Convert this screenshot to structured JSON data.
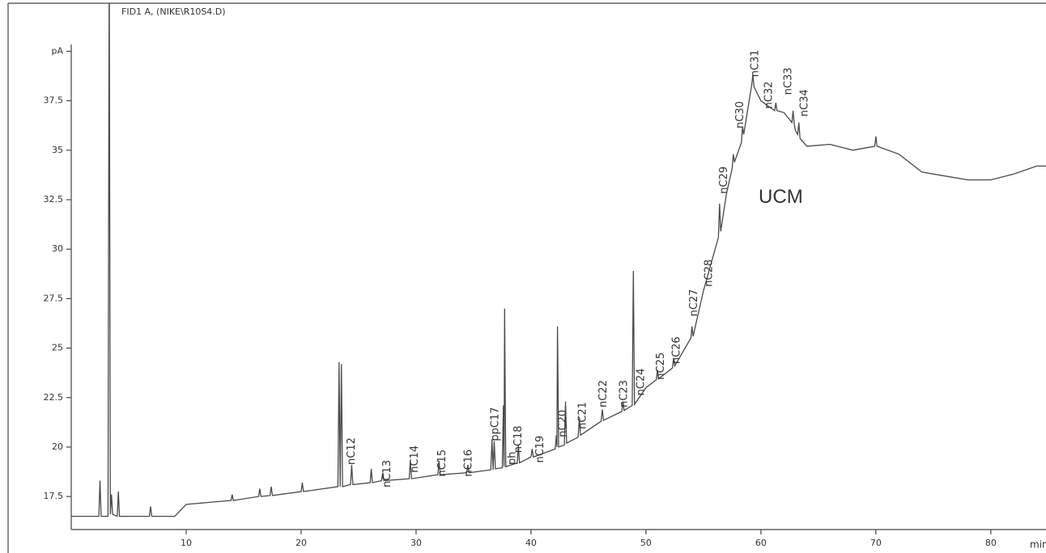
{
  "chart_data": {
    "type": "line",
    "title": "FID1 A, (NIKE\\R10S4.D)",
    "x_label": "min",
    "color": "#4a4a4a",
    "xlim": [
      0,
      84.8
    ],
    "ylim": [
      15.83,
      42.43
    ],
    "xticks": [
      10,
      20,
      30,
      40,
      50,
      60,
      70,
      80
    ],
    "yticks": [
      17.5,
      20,
      22.5,
      25,
      27.5,
      30,
      32.5,
      35,
      37.5,
      {
        "value": 40,
        "label": "pA"
      }
    ],
    "x": [
      0,
      2.4,
      2.5,
      2.6,
      3.2,
      3.3,
      3.4,
      3.5,
      3.6,
      4.0,
      4.1,
      4.2,
      6.8,
      6.9,
      7.0,
      9,
      10,
      13.9,
      14,
      14.1,
      16.3,
      16.4,
      16.5,
      17.3,
      17.4,
      17.5,
      20,
      20.1,
      20.2,
      23.2,
      23.3,
      23.4,
      23.5,
      23.6,
      24.3,
      24.4,
      24.5,
      26,
      26.1,
      26.2,
      27,
      27.1,
      27.2,
      29.4,
      29.5,
      29.6,
      31.9,
      32,
      32.1,
      34.4,
      34.5,
      34.6,
      36.5,
      36.6,
      36.7,
      36.8,
      36.9,
      37.5,
      37.6,
      37.65,
      37.7,
      37.8,
      38.8,
      38.9,
      39.0,
      40,
      40.1,
      40.2,
      42.1,
      42.2,
      42.25,
      42.3,
      42.4,
      42.9,
      43,
      43.1,
      44.1,
      44.2,
      44.3,
      46.1,
      46.2,
      46.3,
      47.9,
      48,
      48.1,
      48.8,
      48.9,
      49,
      50,
      50.9,
      51,
      51.1,
      52.3,
      52.4,
      52.5,
      53,
      53.9,
      54,
      54.1,
      55,
      56.3,
      56.4,
      56.5,
      57,
      57.5,
      57.6,
      57.7,
      58.3,
      58.4,
      58.5,
      59.2,
      59.3,
      59.4,
      60,
      61.2,
      61.3,
      61.4,
      62,
      62.7,
      62.8,
      62.9,
      63,
      63.2,
      63.3,
      63.4,
      64,
      66,
      68,
      69.9,
      70,
      70.1,
      72,
      74,
      76,
      78,
      80,
      82,
      84,
      84.8
    ],
    "values": [
      16.5,
      16.5,
      18.3,
      16.5,
      16.5,
      45,
      16.6,
      17.6,
      16.6,
      16.5,
      17.75,
      16.5,
      16.5,
      17.0,
      16.5,
      16.5,
      17.1,
      17.3,
      17.6,
      17.3,
      17.5,
      17.9,
      17.5,
      17.55,
      18.0,
      17.55,
      17.75,
      18.2,
      17.75,
      18.0,
      24.3,
      18.0,
      24.2,
      18.0,
      18.1,
      19.1,
      18.1,
      18.2,
      18.9,
      18.2,
      18.3,
      18.7,
      18.3,
      18.4,
      19.3,
      18.4,
      18.6,
      19.3,
      18.6,
      18.7,
      19.1,
      18.7,
      18.85,
      20.4,
      18.85,
      20.3,
      18.9,
      18.95,
      22.1,
      19.0,
      27.0,
      19.0,
      19.2,
      20.1,
      19.2,
      19.5,
      19.9,
      19.5,
      19.9,
      20.6,
      20.0,
      26.1,
      20.0,
      20.1,
      22.3,
      20.2,
      20.5,
      21.5,
      20.6,
      21.3,
      21.9,
      21.35,
      21.8,
      22.3,
      21.85,
      22.1,
      28.9,
      22.15,
      23.0,
      23.4,
      23.9,
      23.45,
      24.0,
      24.5,
      24.1,
      24.6,
      25.5,
      26.1,
      25.6,
      27.9,
      30.6,
      32.3,
      30.9,
      32.8,
      34.1,
      34.8,
      34.4,
      35.4,
      36.2,
      35.8,
      38.3,
      38.8,
      38.2,
      37.5,
      37.0,
      37.4,
      37.0,
      36.9,
      36.4,
      37.0,
      36.3,
      36.0,
      35.8,
      36.4,
      35.6,
      35.2,
      35.3,
      35.0,
      35.2,
      35.7,
      35.2,
      34.8,
      33.9,
      33.7,
      33.5,
      33.5,
      33.8,
      34.2,
      34.2
    ],
    "annotations": [
      {
        "label": "nC12",
        "x": 24.4,
        "y": 19.1
      },
      {
        "label": "nC13",
        "x": 27.5,
        "y": 17.96
      },
      {
        "label": "nC14",
        "x": 29.9,
        "y": 18.7
      },
      {
        "label": "nC15",
        "x": 32.3,
        "y": 18.5
      },
      {
        "label": "nC16",
        "x": 34.6,
        "y": 18.5
      },
      {
        "label": "ppC17",
        "x": 36.9,
        "y": 20.3
      },
      {
        "label": "ph",
        "x": 38.4,
        "y": 19.1
      },
      {
        "label": "nC18",
        "x": 38.9,
        "y": 19.7
      },
      {
        "label": "nC19",
        "x": 40.8,
        "y": 19.2
      },
      {
        "label": "nC20",
        "x": 42.8,
        "y": 20.5
      },
      {
        "label": "nC21",
        "x": 44.5,
        "y": 20.9
      },
      {
        "label": "nC22",
        "x": 46.3,
        "y": 22.0
      },
      {
        "label": "nC23",
        "x": 48.1,
        "y": 22.0
      },
      {
        "label": "nC24",
        "x": 49.6,
        "y": 22.6
      },
      {
        "label": "nC25",
        "x": 51.3,
        "y": 23.4
      },
      {
        "label": "nC26",
        "x": 52.7,
        "y": 24.2
      },
      {
        "label": "nC27",
        "x": 54.2,
        "y": 26.6
      },
      {
        "label": "nC28",
        "x": 55.5,
        "y": 28.1
      },
      {
        "label": "nC29",
        "x": 56.8,
        "y": 32.8
      },
      {
        "label": "nC30",
        "x": 58.2,
        "y": 36.1
      },
      {
        "label": "nC31",
        "x": 59.5,
        "y": 38.7
      },
      {
        "label": "nC32",
        "x": 60.7,
        "y": 37.1
      },
      {
        "label": "nC33",
        "x": 62.4,
        "y": 37.8
      },
      {
        "label": "nC34",
        "x": 63.8,
        "y": 36.7
      }
    ],
    "region_label": {
      "text": "UCM",
      "x": 59.8,
      "y": 32.6
    }
  }
}
